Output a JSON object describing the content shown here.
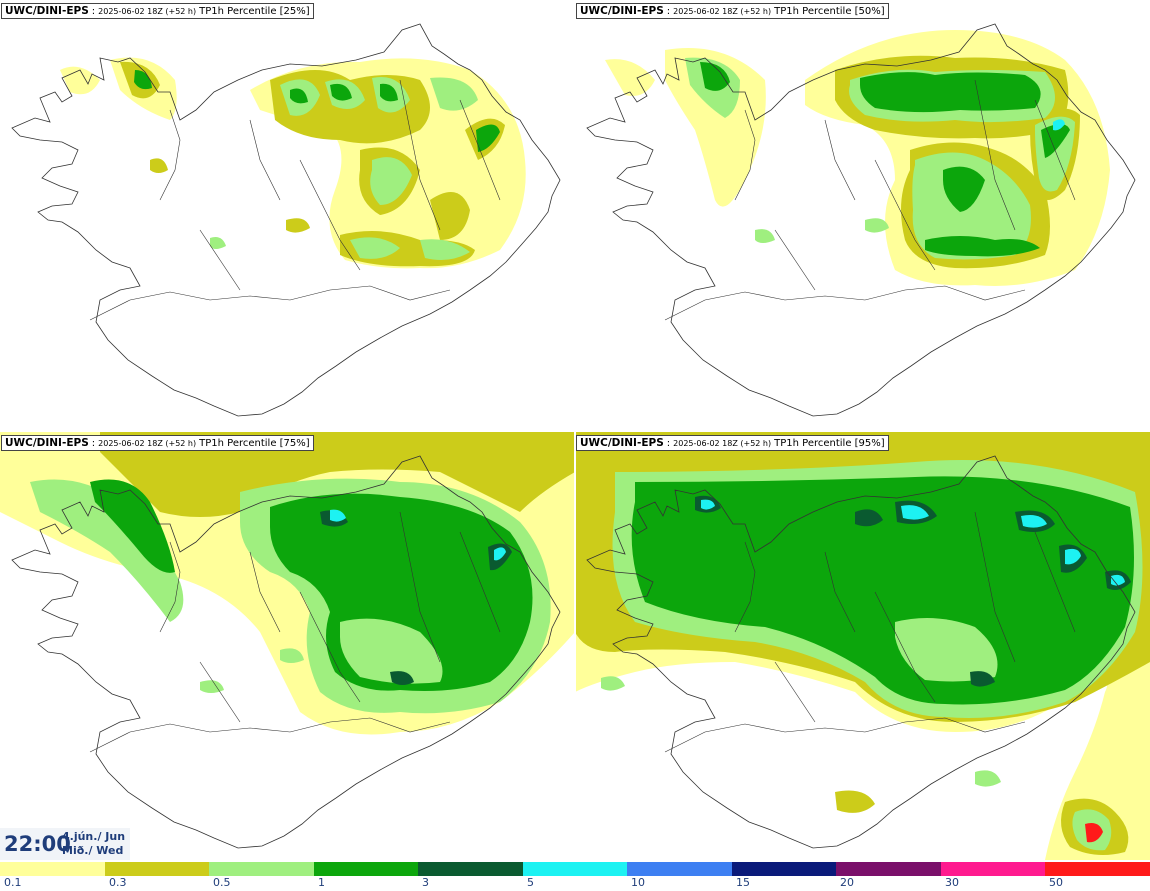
{
  "panels": [
    {
      "model": "UWC/DINI-EPS",
      "run": "2025-06-02 18Z (+52 h)",
      "parameter": "TP1h Percentile [25%]"
    },
    {
      "model": "UWC/DINI-EPS",
      "run": "2025-06-02 18Z (+52 h)",
      "parameter": "TP1h Percentile [50%]"
    },
    {
      "model": "UWC/DINI-EPS",
      "run": "2025-06-02 18Z (+52 h)",
      "parameter": "TP1h Percentile [75%]"
    },
    {
      "model": "UWC/DINI-EPS",
      "run": "2025-06-02 18Z (+52 h)",
      "parameter": "TP1h Percentile [95%]"
    }
  ],
  "valid_time": {
    "hour": "22:00",
    "date_line1": "4.jún./ Jun",
    "date_line2": "Mið./ Wed"
  },
  "legend": {
    "labels": [
      "0.1",
      "0.3",
      "0.5",
      "1",
      "3",
      "5",
      "10",
      "15",
      "20",
      "30",
      "50"
    ],
    "colors": [
      "#ffff9a",
      "#cccc1a",
      "#9fef7f",
      "#0ca60c",
      "#0a5a30",
      "#1df2f2",
      "#3d7ff2",
      "#0a1a7a",
      "#7a0f6a",
      "#ff1a8f",
      "#ff1a1a"
    ]
  },
  "colors": {
    "coastline": "#333333",
    "panel_border": "#444444",
    "time_text": "#1f3d7a",
    "time_bg": "#f1f4f8"
  }
}
